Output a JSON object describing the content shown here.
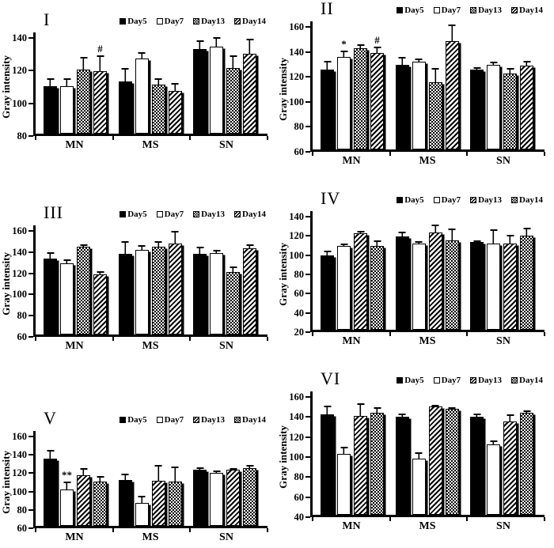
{
  "figure": {
    "y_axis_title": "Gray intensity",
    "x_categories": [
      "MN",
      "MS",
      "SN"
    ]
  },
  "chart_data": [
    {
      "type": "bar",
      "label": "I",
      "ylabel": "Gray intensity",
      "categories": [
        "MN",
        "MS",
        "SN"
      ],
      "ylim": [
        80,
        140
      ],
      "yticks": [
        80,
        100,
        120,
        140
      ],
      "legend_position": "top",
      "grid": false,
      "series": [
        {
          "name": "Day5",
          "pattern": "solid",
          "values": [
            109,
            112,
            132
          ],
          "errors": [
            5,
            8,
            5
          ]
        },
        {
          "name": "Day7",
          "pattern": "white",
          "values": [
            109,
            126,
            133
          ],
          "errors": [
            5,
            4,
            6
          ]
        },
        {
          "name": "Day13",
          "pattern": "checker",
          "values": [
            119,
            110,
            120
          ],
          "errors": [
            8,
            4,
            8
          ]
        },
        {
          "name": "Day14",
          "pattern": "diag",
          "values": [
            118,
            106,
            129
          ],
          "errors": [
            10,
            5,
            9
          ]
        }
      ],
      "annotations": [
        {
          "category": "MN",
          "series": "Day14",
          "text": "#"
        }
      ]
    },
    {
      "type": "bar",
      "label": "II",
      "ylabel": "Gray intensity",
      "categories": [
        "MN",
        "MS",
        "SN"
      ],
      "ylim": [
        60,
        160
      ],
      "yticks": [
        60,
        80,
        100,
        120,
        140,
        160
      ],
      "legend_position": "top",
      "grid": false,
      "series": [
        {
          "name": "Day5",
          "pattern": "solid",
          "values": [
            124,
            128,
            124
          ],
          "errors": [
            7,
            6,
            2
          ]
        },
        {
          "name": "Day7",
          "pattern": "white",
          "values": [
            134,
            130,
            128
          ],
          "errors": [
            5,
            3,
            2
          ]
        },
        {
          "name": "Day13",
          "pattern": "checker",
          "values": [
            141,
            114,
            121
          ],
          "errors": [
            3,
            11,
            4
          ]
        },
        {
          "name": "Day14",
          "pattern": "diag",
          "values": [
            137,
            147,
            127
          ],
          "errors": [
            5,
            13,
            4
          ]
        }
      ],
      "annotations": [
        {
          "category": "MN",
          "series": "Day7",
          "text": "*"
        },
        {
          "category": "MN",
          "series": "Day14",
          "text": "#"
        }
      ]
    },
    {
      "type": "bar",
      "label": "III",
      "ylabel": "Gray intensity",
      "categories": [
        "MN",
        "MS",
        "SN"
      ],
      "ylim": [
        60,
        160
      ],
      "yticks": [
        60,
        80,
        100,
        120,
        140,
        160
      ],
      "legend_position": "top",
      "grid": false,
      "series": [
        {
          "name": "Day5",
          "pattern": "solid",
          "values": [
            132,
            136,
            136
          ],
          "errors": [
            6,
            12,
            7
          ]
        },
        {
          "name": "Day7",
          "pattern": "white",
          "values": [
            127,
            140,
            137
          ],
          "errors": [
            4,
            4,
            3
          ]
        },
        {
          "name": "Day13",
          "pattern": "checker",
          "values": [
            143,
            143,
            119
          ],
          "errors": [
            2,
            5,
            5
          ]
        },
        {
          "name": "Day14",
          "pattern": "diag",
          "values": [
            117,
            146,
            141
          ],
          "errors": [
            3,
            12,
            4
          ]
        }
      ],
      "annotations": []
    },
    {
      "type": "bar",
      "label": "IV",
      "ylabel": "Gray intensity",
      "categories": [
        "MN",
        "MS",
        "SN"
      ],
      "ylim": [
        20,
        140
      ],
      "yticks": [
        20,
        40,
        60,
        80,
        100,
        120,
        140
      ],
      "legend_position": "top",
      "grid": false,
      "series": [
        {
          "name": "Day5",
          "pattern": "solid",
          "values": [
            97,
            117,
            111
          ],
          "errors": [
            5,
            5,
            2
          ]
        },
        {
          "name": "Day7",
          "pattern": "white",
          "values": [
            107,
            110,
            110
          ],
          "errors": [
            3,
            2,
            14
          ]
        },
        {
          "name": "Day13",
          "pattern": "diag",
          "values": [
            120,
            121,
            110
          ],
          "errors": [
            3,
            8,
            9
          ]
        },
        {
          "name": "Day14",
          "pattern": "checker",
          "values": [
            107,
            113,
            118
          ],
          "errors": [
            6,
            12,
            8
          ]
        }
      ],
      "annotations": []
    },
    {
      "type": "bar",
      "label": "V",
      "ylabel": "Gray intensity",
      "categories": [
        "MN",
        "MS",
        "SN"
      ],
      "ylim": [
        60,
        160
      ],
      "yticks": [
        60,
        80,
        100,
        120,
        140,
        160
      ],
      "legend_position": "top",
      "grid": false,
      "series": [
        {
          "name": "Day5",
          "pattern": "solid",
          "values": [
            133,
            110,
            121
          ],
          "errors": [
            10,
            7,
            3
          ]
        },
        {
          "name": "Day7",
          "pattern": "white",
          "values": [
            100,
            85,
            118
          ],
          "errors": [
            8,
            8,
            2
          ]
        },
        {
          "name": "Day13",
          "pattern": "diag",
          "values": [
            115,
            109,
            121
          ],
          "errors": [
            8,
            17,
            2
          ]
        },
        {
          "name": "Day14",
          "pattern": "checker",
          "values": [
            108,
            108,
            123
          ],
          "errors": [
            6,
            17,
            3
          ]
        }
      ],
      "annotations": [
        {
          "category": "MN",
          "series": "Day7",
          "text": "**"
        }
      ]
    },
    {
      "type": "bar",
      "label": "VI",
      "ylabel": "Gray intensity",
      "categories": [
        "MN",
        "MS",
        "SN"
      ],
      "ylim": [
        40,
        160
      ],
      "yticks": [
        40,
        60,
        80,
        100,
        120,
        140,
        160
      ],
      "legend_position": "top",
      "grid": false,
      "series": [
        {
          "name": "Day5",
          "pattern": "solid",
          "values": [
            140,
            138,
            138
          ],
          "errors": [
            9,
            3,
            3
          ]
        },
        {
          "name": "Day7",
          "pattern": "white",
          "values": [
            101,
            96,
            110
          ],
          "errors": [
            7,
            6,
            4
          ]
        },
        {
          "name": "Day13",
          "pattern": "diag",
          "values": [
            139,
            148,
            133
          ],
          "errors": [
            12,
            1,
            7
          ]
        },
        {
          "name": "Day14",
          "pattern": "checker",
          "values": [
            142,
            146,
            142
          ],
          "errors": [
            5,
            1,
            2
          ]
        }
      ],
      "annotations": []
    }
  ]
}
